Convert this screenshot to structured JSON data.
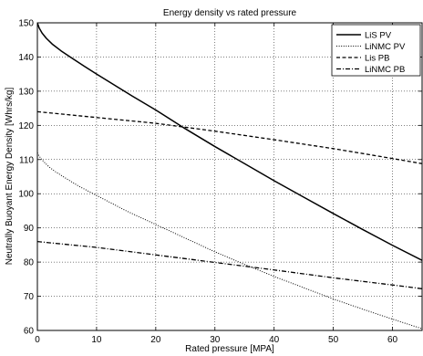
{
  "chart_data": {
    "type": "line",
    "title": "Energy density vs rated pressure",
    "xlabel": "Rated pressure [MPA]",
    "ylabel": "Neutrally Buoyant Energy Density [Whrs/kg]",
    "xlim": [
      0,
      65
    ],
    "ylim": [
      60,
      150
    ],
    "xticks": [
      0,
      10,
      20,
      30,
      40,
      50,
      60
    ],
    "yticks": [
      60,
      70,
      80,
      90,
      100,
      110,
      120,
      130,
      140,
      150
    ],
    "grid": true,
    "legend_position": "top-right",
    "series": [
      {
        "name": "LiS PV",
        "style": "solid",
        "x": [
          0,
          0.3,
          0.8,
          1.5,
          2.5,
          4,
          6,
          8,
          10,
          13,
          16,
          20,
          25,
          30,
          35,
          40,
          45,
          50,
          55,
          60,
          65
        ],
        "y": [
          150,
          148.5,
          147,
          145.5,
          143.8,
          141.8,
          139.5,
          137.2,
          135,
          131.8,
          128.6,
          124.5,
          119,
          113.8,
          108.8,
          103.8,
          99,
          94.2,
          89.5,
          84.9,
          80.5
        ]
      },
      {
        "name": "LiNMC PV",
        "style": "dotted",
        "x": [
          0,
          0.3,
          1,
          2,
          3,
          5,
          7,
          10,
          15,
          20,
          25,
          30,
          35,
          40,
          45,
          50,
          55,
          60,
          65
        ],
        "y": [
          112,
          111,
          109.5,
          107.8,
          106.5,
          104.3,
          102.2,
          99.5,
          95,
          91,
          87,
          83,
          79.3,
          75.8,
          72.5,
          69.2,
          66.2,
          63.3,
          60.5
        ]
      },
      {
        "name": "Lis PB",
        "style": "dashed",
        "x": [
          0,
          10,
          20,
          30,
          40,
          50,
          60,
          65
        ],
        "y": [
          124,
          122.3,
          120.6,
          118.3,
          115.8,
          113.2,
          110.3,
          108.8
        ]
      },
      {
        "name": "LiNMC PB",
        "style": "dashdot",
        "x": [
          0,
          10,
          20,
          30,
          40,
          50,
          60,
          65
        ],
        "y": [
          86,
          84.3,
          82.1,
          79.9,
          77.7,
          75.4,
          73.3,
          72.2
        ]
      }
    ]
  }
}
